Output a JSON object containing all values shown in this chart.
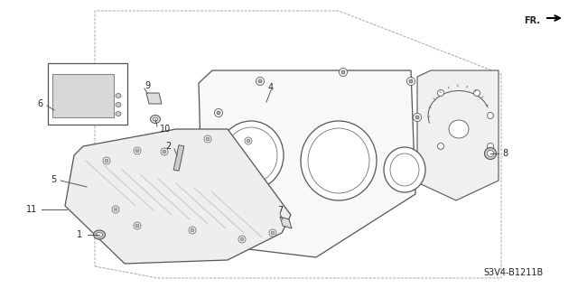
{
  "bg_color": "#ffffff",
  "line_color": "#555555",
  "text_color": "#222222",
  "part_number_text": "S3V4-B1211B",
  "fr_label": "FR."
}
